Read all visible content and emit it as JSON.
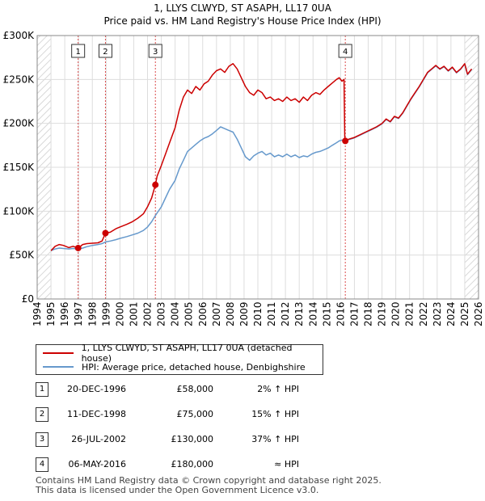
{
  "chart_data": {
    "type": "line",
    "title": "1, LLYS CLWYD, ST ASAPH, LL17 0UA",
    "subtitle": "Price paid vs. HM Land Registry's House Price Index (HPI)",
    "xlim": [
      1994,
      2026
    ],
    "ylim": [
      0,
      300000
    ],
    "x_ticks": [
      "1994",
      "1995",
      "1996",
      "1997",
      "1998",
      "1999",
      "2000",
      "2001",
      "2002",
      "2003",
      "2004",
      "2005",
      "2006",
      "2007",
      "2008",
      "2009",
      "2010",
      "2011",
      "2012",
      "2013",
      "2014",
      "2015",
      "2016",
      "2017",
      "2018",
      "2019",
      "2020",
      "2021",
      "2022",
      "2023",
      "2024",
      "2025",
      "2026"
    ],
    "y_ticks": [
      {
        "value": 0,
        "label": "£0"
      },
      {
        "value": 50000,
        "label": "£50K"
      },
      {
        "value": 100000,
        "label": "£100K"
      },
      {
        "value": 150000,
        "label": "£150K"
      },
      {
        "value": 200000,
        "label": "£200K"
      },
      {
        "value": 250000,
        "label": "£250K"
      },
      {
        "value": 300000,
        "label": "£300K"
      }
    ],
    "grid": true,
    "hatched_ranges": [
      [
        1994,
        1995
      ],
      [
        2025,
        2026
      ]
    ],
    "series": [
      {
        "name": "1, LLYS CLWYD, ST ASAPH, LL17 0UA (detached house)",
        "color": "#cc0000",
        "points": [
          [
            1995.0,
            55000
          ],
          [
            1995.3,
            60000
          ],
          [
            1995.6,
            62000
          ],
          [
            1995.9,
            61000
          ],
          [
            1996.3,
            58500
          ],
          [
            1996.6,
            60000
          ],
          [
            1996.97,
            58000
          ],
          [
            1997.3,
            62000
          ],
          [
            1997.6,
            63000
          ],
          [
            1998.0,
            63500
          ],
          [
            1998.4,
            64000
          ],
          [
            1998.7,
            66000
          ],
          [
            1998.95,
            75000
          ],
          [
            1999.3,
            76000
          ],
          [
            1999.7,
            80000
          ],
          [
            2000.0,
            82000
          ],
          [
            2000.5,
            85000
          ],
          [
            2000.9,
            88000
          ],
          [
            2001.3,
            92000
          ],
          [
            2001.7,
            97000
          ],
          [
            2002.0,
            105000
          ],
          [
            2002.3,
            115000
          ],
          [
            2002.57,
            130000
          ],
          [
            2002.7,
            140000
          ],
          [
            2003.0,
            152000
          ],
          [
            2003.3,
            165000
          ],
          [
            2003.6,
            178000
          ],
          [
            2004.0,
            195000
          ],
          [
            2004.3,
            215000
          ],
          [
            2004.6,
            230000
          ],
          [
            2004.9,
            238000
          ],
          [
            2005.2,
            234000
          ],
          [
            2005.5,
            242000
          ],
          [
            2005.8,
            238000
          ],
          [
            2006.1,
            245000
          ],
          [
            2006.4,
            248000
          ],
          [
            2006.7,
            255000
          ],
          [
            2007.0,
            260000
          ],
          [
            2007.3,
            262000
          ],
          [
            2007.6,
            258000
          ],
          [
            2007.9,
            265000
          ],
          [
            2008.2,
            268000
          ],
          [
            2008.5,
            262000
          ],
          [
            2008.8,
            252000
          ],
          [
            2009.1,
            242000
          ],
          [
            2009.4,
            235000
          ],
          [
            2009.7,
            232000
          ],
          [
            2010.0,
            238000
          ],
          [
            2010.3,
            235000
          ],
          [
            2010.6,
            228000
          ],
          [
            2010.9,
            230000
          ],
          [
            2011.2,
            226000
          ],
          [
            2011.5,
            228000
          ],
          [
            2011.8,
            225000
          ],
          [
            2012.1,
            230000
          ],
          [
            2012.4,
            226000
          ],
          [
            2012.7,
            228000
          ],
          [
            2013.0,
            224000
          ],
          [
            2013.3,
            230000
          ],
          [
            2013.6,
            226000
          ],
          [
            2013.9,
            232000
          ],
          [
            2014.2,
            235000
          ],
          [
            2014.5,
            233000
          ],
          [
            2014.8,
            238000
          ],
          [
            2015.1,
            242000
          ],
          [
            2015.4,
            246000
          ],
          [
            2015.7,
            250000
          ],
          [
            2015.9,
            252000
          ],
          [
            2016.1,
            248000
          ],
          [
            2016.25,
            250000
          ],
          [
            2016.3,
            185000
          ],
          [
            2016.34,
            180000
          ],
          [
            2016.6,
            182000
          ],
          [
            2017.0,
            184000
          ],
          [
            2017.4,
            187000
          ],
          [
            2017.8,
            190000
          ],
          [
            2018.2,
            193000
          ],
          [
            2018.6,
            196000
          ],
          [
            2019.0,
            200000
          ],
          [
            2019.3,
            205000
          ],
          [
            2019.6,
            202000
          ],
          [
            2019.9,
            208000
          ],
          [
            2020.2,
            206000
          ],
          [
            2020.5,
            212000
          ],
          [
            2020.8,
            220000
          ],
          [
            2021.1,
            228000
          ],
          [
            2021.4,
            235000
          ],
          [
            2021.7,
            242000
          ],
          [
            2022.0,
            250000
          ],
          [
            2022.3,
            258000
          ],
          [
            2022.6,
            262000
          ],
          [
            2022.9,
            266000
          ],
          [
            2023.2,
            262000
          ],
          [
            2023.5,
            265000
          ],
          [
            2023.8,
            260000
          ],
          [
            2024.1,
            264000
          ],
          [
            2024.4,
            258000
          ],
          [
            2024.7,
            262000
          ],
          [
            2025.0,
            268000
          ],
          [
            2025.2,
            256000
          ],
          [
            2025.5,
            262000
          ]
        ]
      },
      {
        "name": "HPI: Average price, detached house, Denbighshire",
        "color": "#6699cc",
        "points": [
          [
            1995.0,
            55000
          ],
          [
            1995.3,
            57000
          ],
          [
            1995.6,
            58000
          ],
          [
            1995.9,
            57500
          ],
          [
            1996.3,
            57000
          ],
          [
            1996.6,
            57500
          ],
          [
            1996.97,
            57000
          ],
          [
            1997.3,
            58000
          ],
          [
            1997.6,
            59500
          ],
          [
            1998.0,
            61000
          ],
          [
            1998.4,
            62000
          ],
          [
            1998.7,
            63000
          ],
          [
            1998.95,
            65000
          ],
          [
            1999.3,
            66000
          ],
          [
            1999.7,
            67500
          ],
          [
            2000.0,
            69000
          ],
          [
            2000.5,
            71000
          ],
          [
            2000.9,
            73000
          ],
          [
            2001.3,
            75000
          ],
          [
            2001.7,
            78000
          ],
          [
            2002.0,
            82000
          ],
          [
            2002.3,
            88000
          ],
          [
            2002.57,
            95000
          ],
          [
            2002.7,
            98000
          ],
          [
            2003.0,
            105000
          ],
          [
            2003.3,
            115000
          ],
          [
            2003.6,
            125000
          ],
          [
            2004.0,
            135000
          ],
          [
            2004.3,
            148000
          ],
          [
            2004.6,
            158000
          ],
          [
            2004.9,
            168000
          ],
          [
            2005.2,
            172000
          ],
          [
            2005.5,
            176000
          ],
          [
            2005.8,
            180000
          ],
          [
            2006.1,
            183000
          ],
          [
            2006.4,
            185000
          ],
          [
            2006.7,
            188000
          ],
          [
            2007.0,
            192000
          ],
          [
            2007.3,
            196000
          ],
          [
            2007.6,
            194000
          ],
          [
            2007.9,
            192000
          ],
          [
            2008.2,
            190000
          ],
          [
            2008.5,
            182000
          ],
          [
            2008.8,
            172000
          ],
          [
            2009.1,
            162000
          ],
          [
            2009.4,
            158000
          ],
          [
            2009.7,
            163000
          ],
          [
            2010.0,
            166000
          ],
          [
            2010.3,
            168000
          ],
          [
            2010.6,
            164000
          ],
          [
            2010.9,
            166000
          ],
          [
            2011.2,
            162000
          ],
          [
            2011.5,
            164000
          ],
          [
            2011.8,
            162000
          ],
          [
            2012.1,
            165000
          ],
          [
            2012.4,
            162000
          ],
          [
            2012.7,
            164000
          ],
          [
            2013.0,
            161000
          ],
          [
            2013.3,
            163000
          ],
          [
            2013.6,
            162000
          ],
          [
            2013.9,
            165000
          ],
          [
            2014.2,
            167000
          ],
          [
            2014.5,
            168000
          ],
          [
            2014.8,
            170000
          ],
          [
            2015.1,
            172000
          ],
          [
            2015.4,
            175000
          ],
          [
            2015.7,
            178000
          ],
          [
            2015.9,
            180000
          ],
          [
            2016.1,
            181000
          ],
          [
            2016.25,
            180500
          ],
          [
            2016.34,
            180000
          ],
          [
            2016.6,
            181500
          ],
          [
            2017.0,
            183500
          ],
          [
            2017.4,
            186500
          ],
          [
            2017.8,
            189500
          ],
          [
            2018.2,
            192500
          ],
          [
            2018.6,
            195500
          ],
          [
            2019.0,
            199500
          ],
          [
            2019.3,
            204500
          ],
          [
            2019.6,
            201500
          ],
          [
            2019.9,
            207500
          ],
          [
            2020.2,
            205500
          ],
          [
            2020.5,
            211500
          ],
          [
            2020.8,
            219500
          ],
          [
            2021.1,
            227500
          ],
          [
            2021.4,
            234500
          ],
          [
            2021.7,
            241500
          ],
          [
            2022.0,
            249500
          ],
          [
            2022.3,
            257500
          ],
          [
            2022.6,
            261500
          ],
          [
            2022.9,
            265500
          ],
          [
            2023.2,
            261500
          ],
          [
            2023.5,
            264500
          ],
          [
            2023.8,
            259500
          ],
          [
            2024.1,
            263500
          ],
          [
            2024.4,
            257500
          ],
          [
            2024.7,
            261500
          ],
          [
            2025.0,
            267500
          ],
          [
            2025.2,
            255500
          ],
          [
            2025.5,
            261500
          ]
        ]
      }
    ],
    "sale_markers": [
      {
        "label": "1",
        "x": 1996.97,
        "y": 58000
      },
      {
        "label": "2",
        "x": 1998.95,
        "y": 75000
      },
      {
        "label": "3",
        "x": 2002.57,
        "y": 130000
      },
      {
        "label": "4",
        "x": 2016.34,
        "y": 180000
      }
    ]
  },
  "legend": {
    "price_paid_label": "1, LLYS CLWYD, ST ASAPH, LL17 0UA (detached house)",
    "hpi_label": "HPI: Average price, detached house, Denbighshire"
  },
  "sales": [
    {
      "num": "1",
      "date": "20-DEC-1996",
      "price": "£58,000",
      "hpi": "2% ↑ HPI"
    },
    {
      "num": "2",
      "date": "11-DEC-1998",
      "price": "£75,000",
      "hpi": "15% ↑ HPI"
    },
    {
      "num": "3",
      "date": "26-JUL-2002",
      "price": "£130,000",
      "hpi": "37% ↑ HPI"
    },
    {
      "num": "4",
      "date": "06-MAY-2016",
      "price": "£180,000",
      "hpi": "≈ HPI"
    }
  ],
  "footer": {
    "line1": "Contains HM Land Registry data © Crown copyright and database right 2025.",
    "line2": "This data is licensed under the Open Government Licence v3.0."
  }
}
